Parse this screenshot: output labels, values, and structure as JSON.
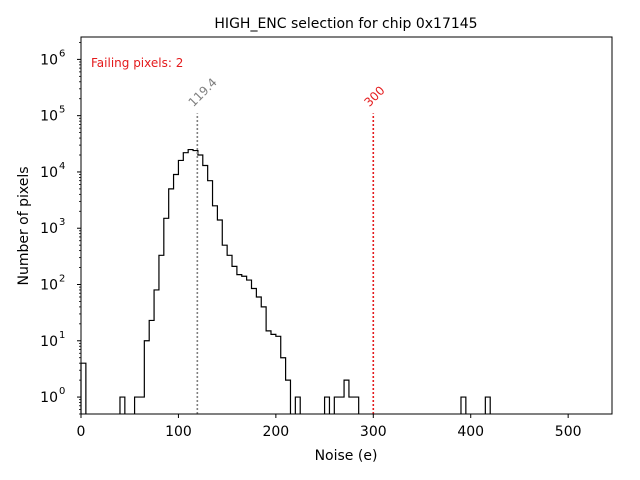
{
  "chart_data": {
    "type": "histogram",
    "title": "HIGH_ENC selection for chip 0x17145",
    "xlabel": "Noise (e)",
    "ylabel": "Number of pixels",
    "xlim": [
      0,
      545
    ],
    "ylim": [
      0.5,
      2500000
    ],
    "yscale": "log",
    "bin_width": 5,
    "x_ticks": [
      0,
      100,
      200,
      300,
      400,
      500
    ],
    "x_tick_labels": [
      "0",
      "100",
      "200",
      "300",
      "400",
      "500"
    ],
    "y_ticks": [
      1,
      10,
      100,
      1000,
      10000,
      100000,
      1000000
    ],
    "y_tick_labels": [
      {
        "base": "10",
        "exp": "0"
      },
      {
        "base": "10",
        "exp": "1"
      },
      {
        "base": "10",
        "exp": "2"
      },
      {
        "base": "10",
        "exp": "3"
      },
      {
        "base": "10",
        "exp": "4"
      },
      {
        "base": "10",
        "exp": "5"
      },
      {
        "base": "10",
        "exp": "6"
      }
    ],
    "bins": [
      [
        0,
        4
      ],
      [
        40,
        1
      ],
      [
        55,
        1
      ],
      [
        60,
        1
      ],
      [
        65,
        10
      ],
      [
        70,
        23
      ],
      [
        75,
        80
      ],
      [
        80,
        330
      ],
      [
        85,
        1500
      ],
      [
        90,
        5000
      ],
      [
        95,
        9000
      ],
      [
        100,
        16000
      ],
      [
        105,
        22000
      ],
      [
        110,
        25000
      ],
      [
        115,
        24000
      ],
      [
        120,
        20000
      ],
      [
        125,
        13000
      ],
      [
        130,
        7000
      ],
      [
        135,
        2500
      ],
      [
        140,
        1400
      ],
      [
        145,
        500
      ],
      [
        150,
        330
      ],
      [
        155,
        210
      ],
      [
        160,
        150
      ],
      [
        165,
        140
      ],
      [
        170,
        120
      ],
      [
        175,
        85
      ],
      [
        180,
        60
      ],
      [
        185,
        40
      ],
      [
        190,
        15
      ],
      [
        195,
        13
      ],
      [
        200,
        12
      ],
      [
        205,
        5
      ],
      [
        210,
        2
      ],
      [
        220,
        1
      ],
      [
        250,
        1
      ],
      [
        260,
        1
      ],
      [
        265,
        1
      ],
      [
        270,
        2
      ],
      [
        275,
        1
      ],
      [
        280,
        1
      ],
      [
        390,
        1
      ],
      [
        415,
        1
      ]
    ],
    "annotations": [
      {
        "x": 119.4,
        "label": "119.4",
        "color": "#808080",
        "line_top": 110000
      },
      {
        "x": 300,
        "label": "300",
        "color": "#e41a1c",
        "line_top": 110000
      }
    ],
    "note": {
      "text": "Failing pixels: 2",
      "color": "#e41a1c"
    },
    "line_color": "#000000"
  }
}
